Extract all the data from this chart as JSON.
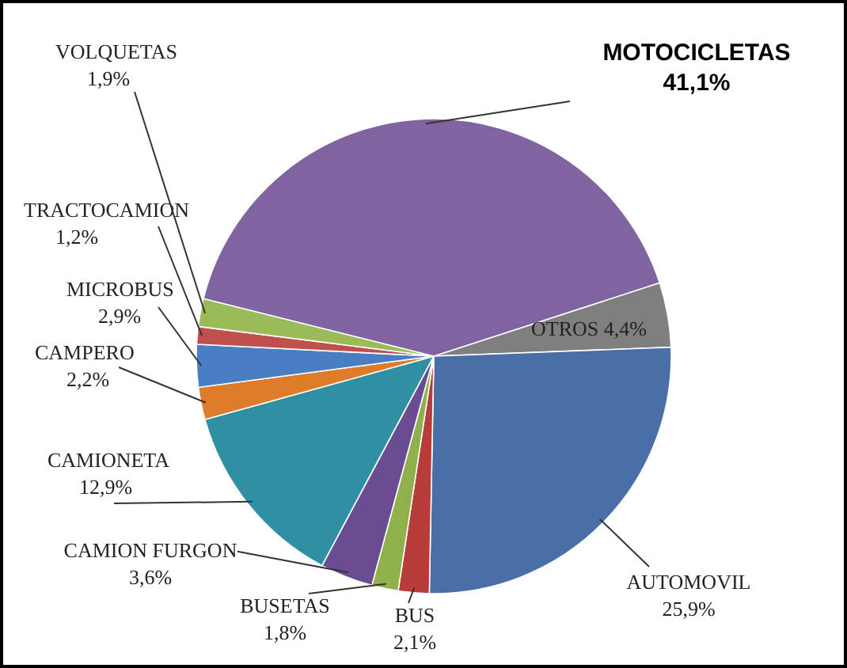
{
  "chart_data": {
    "type": "pie",
    "categories": [
      "OTROS",
      "AUTOMOVIL",
      "BUS",
      "BUSETAS",
      "CAMION FURGON",
      "CAMIONETA",
      "CAMPERO",
      "MICROBUS",
      "TRACTOCAMION",
      "VOLQUETAS",
      "MOTOCICLETAS"
    ],
    "values": [
      4.4,
      25.9,
      2.1,
      1.8,
      3.6,
      12.9,
      2.2,
      2.9,
      1.2,
      1.9,
      41.1
    ],
    "value_labels": [
      "4,4%",
      "25,9%",
      "2,1%",
      "1,8%",
      "3,6%",
      "12,9%",
      "2,2%",
      "2,9%",
      "1,2%",
      "1,9%",
      "41,1%"
    ],
    "colors": [
      "#7f7f7f",
      "#4a6ea8",
      "#b83c3a",
      "#8fb04a",
      "#6a4c93",
      "#2f8fa3",
      "#e07b2a",
      "#4a7ec4",
      "#c0504d",
      "#9bbb59",
      "#8064a2"
    ]
  }
}
